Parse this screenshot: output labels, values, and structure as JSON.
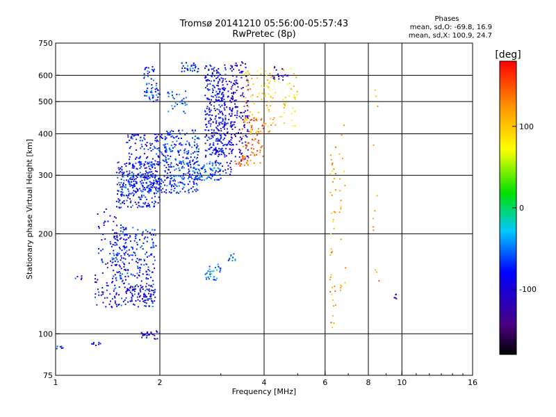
{
  "header": {
    "title_line1": "Tromsø 20141210 05:56:00-05:57:43",
    "title_line2": "RwPretec (8p)"
  },
  "stats": {
    "heading": "Phases",
    "line_o": "mean, sd,O: -69.8, 16.9",
    "line_x": "mean, sd,X: 100.9, 24.7"
  },
  "chart_data": {
    "type": "scatter",
    "xlabel": "Frequency [MHz]",
    "ylabel": "Stationary phase Virtual Height [km]",
    "x_scale": "log",
    "y_scale": "log",
    "xlim": [
      1,
      16
    ],
    "ylim": [
      75,
      750
    ],
    "x_ticks": [
      1,
      2,
      4,
      6,
      8,
      10,
      16
    ],
    "x_tick_labels": [
      "1",
      "2",
      "4",
      "6",
      "8",
      "10",
      "16"
    ],
    "x_gridlines": [
      2,
      4,
      6,
      8,
      10
    ],
    "y_ticks": [
      75,
      100,
      200,
      300,
      400,
      500,
      600,
      750
    ],
    "y_tick_labels": [
      "75",
      "100",
      "200",
      "300",
      "400",
      "500",
      "600",
      "750"
    ],
    "y_gridlines": [
      100,
      200,
      300,
      400,
      500,
      600
    ],
    "grid": true,
    "colorbar": {
      "label": "[deg]",
      "range": [
        -180,
        180
      ],
      "ticks": [
        100,
        0,
        -100
      ],
      "tick_labels": [
        "100",
        "0",
        "-100"
      ],
      "colormap": "rainbow (black-purple-blue-cyan-green-yellow-orange-red)"
    },
    "series": [
      {
        "x": [
          1.0,
          1.05
        ],
        "y": [
          92,
          90
        ],
        "phase": -78,
        "n": 6
      },
      {
        "x": [
          1.12,
          1.2
        ],
        "y": [
          145,
          150
        ],
        "phase": -75,
        "n": 5
      },
      {
        "x": [
          1.25,
          1.35
        ],
        "y": [
          92,
          95
        ],
        "phase": -90,
        "n": 8
      },
      {
        "x": [
          1.3,
          1.6
        ],
        "y": [
          120,
          240
        ],
        "phase": -90,
        "n": 110
      },
      {
        "x": [
          1.45,
          1.95
        ],
        "y": [
          120,
          210
        ],
        "phase": -75,
        "n": 260
      },
      {
        "x": [
          1.6,
          1.95
        ],
        "y": [
          125,
          140
        ],
        "phase": -100,
        "n": 60
      },
      {
        "x": [
          1.5,
          2.0
        ],
        "y": [
          240,
          330
        ],
        "phase": -78,
        "n": 260
      },
      {
        "x": [
          1.6,
          2.1
        ],
        "y": [
          320,
          400
        ],
        "phase": -82,
        "n": 120
      },
      {
        "x": [
          1.55,
          2.6
        ],
        "y": [
          265,
          300
        ],
        "phase": -70,
        "n": 180
      },
      {
        "x": [
          1.8,
          2.0
        ],
        "y": [
          500,
          640
        ],
        "phase": -68,
        "n": 60
      },
      {
        "x": [
          2.05,
          2.6
        ],
        "y": [
          300,
          410
        ],
        "phase": -72,
        "n": 180
      },
      {
        "x": [
          2.3,
          2.6
        ],
        "y": [
          610,
          660
        ],
        "phase": -62,
        "n": 30
      },
      {
        "x": [
          2.5,
          3.0
        ],
        "y": [
          290,
          330
        ],
        "phase": -60,
        "n": 80
      },
      {
        "x": [
          2.7,
          3.1
        ],
        "y": [
          340,
          650
        ],
        "phase": -85,
        "n": 240
      },
      {
        "x": [
          2.9,
          3.25
        ],
        "y": [
          300,
          600
        ],
        "phase": -95,
        "n": 120
      },
      {
        "x": [
          3.2,
          3.6
        ],
        "y": [
          330,
          660
        ],
        "phase": -100,
        "n": 150
      },
      {
        "x": [
          3.3,
          3.6
        ],
        "y": [
          320,
          345
        ],
        "phase": 150,
        "n": 25
      },
      {
        "x": [
          3.45,
          4.0
        ],
        "y": [
          320,
          450
        ],
        "phase": 145,
        "n": 60
      },
      {
        "x": [
          3.5,
          4.2
        ],
        "y": [
          400,
          620
        ],
        "phase": 110,
        "n": 70
      },
      {
        "x": [
          3.8,
          5.0
        ],
        "y": [
          420,
          640
        ],
        "phase": 95,
        "n": 60
      },
      {
        "x": [
          4.2,
          4.8
        ],
        "y": [
          580,
          640
        ],
        "phase": -110,
        "n": 18
      },
      {
        "x": [
          2.1,
          2.4
        ],
        "y": [
          460,
          540
        ],
        "phase": -60,
        "n": 30
      },
      {
        "x": [
          1.75,
          2.0
        ],
        "y": [
          96,
          102
        ],
        "phase": -105,
        "n": 25
      },
      {
        "x": [
          2.7,
          3.0
        ],
        "y": [
          145,
          165
        ],
        "phase": -50,
        "n": 30
      },
      {
        "x": [
          3.15,
          3.4
        ],
        "y": [
          165,
          175
        ],
        "phase": -50,
        "n": 10
      },
      {
        "x": [
          6.2,
          6.45
        ],
        "y": [
          100,
          380
        ],
        "phase": 120,
        "n": 40
      },
      {
        "x": [
          6.6,
          6.9
        ],
        "y": [
          130,
          430
        ],
        "phase": 110,
        "n": 20
      },
      {
        "x": [
          8.2,
          8.6
        ],
        "y": [
          125,
          560
        ],
        "phase": 130,
        "n": 12
      },
      {
        "x": [
          9.5,
          9.7
        ],
        "y": [
          127,
          132
        ],
        "phase": -100,
        "n": 6
      }
    ]
  }
}
